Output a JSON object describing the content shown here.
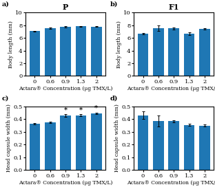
{
  "chart_data": [
    {
      "type": "bar",
      "title": "P",
      "categories": [
        "0",
        "0.6",
        "0.9",
        "1.3",
        "2"
      ],
      "values": [
        7.05,
        7.55,
        7.75,
        7.82,
        7.8
      ],
      "errors": [
        0.1,
        0.08,
        0.08,
        0.06,
        0.08
      ],
      "xlabel": "Actara® Concentration (μg TMX/L)",
      "ylabel": "Body length (mm)",
      "ylim": [
        0,
        10
      ],
      "yticks": [
        0,
        2,
        4,
        6,
        8,
        10
      ],
      "annotations": [
        {
          "text": "a)"
        }
      ]
    },
    {
      "type": "bar",
      "title": "F1",
      "categories": [
        "0",
        "0.6",
        "0.9",
        "1.3",
        "2"
      ],
      "values": [
        6.65,
        7.55,
        7.5,
        6.68,
        7.45
      ],
      "errors": [
        0.12,
        0.45,
        0.15,
        0.22,
        0.1
      ],
      "xlabel": "Actara® Concentration (μg TMX/L)",
      "ylabel": "Body length (mm)",
      "ylim": [
        0,
        10
      ],
      "yticks": [
        0,
        2,
        4,
        6,
        8,
        10
      ],
      "annotations": [
        {
          "text": "b)"
        }
      ]
    },
    {
      "type": "bar",
      "categories": [
        "0",
        "0.6",
        "0.9",
        "1.3",
        "2"
      ],
      "values": [
        0.365,
        0.375,
        0.43,
        0.432,
        0.447
      ],
      "errors": [
        0.006,
        0.006,
        0.01,
        0.006,
        0.006
      ],
      "xlabel": "Actara® Concentration (μg TMX/L)",
      "ylabel": "Head capsule width (mm)",
      "ylim": [
        0.0,
        0.5
      ],
      "yticks": [
        0.0,
        0.1,
        0.2,
        0.3,
        0.4,
        0.5
      ],
      "annotations": [
        {
          "text": "c)"
        },
        {
          "text": "*",
          "category": "0.9"
        },
        {
          "text": "*",
          "category": "1.3"
        },
        {
          "text": "*",
          "category": "2"
        }
      ]
    },
    {
      "type": "bar",
      "categories": [
        "0",
        "0.6",
        "0.9",
        "1.3",
        "2"
      ],
      "values": [
        0.43,
        0.385,
        0.385,
        0.355,
        0.35
      ],
      "errors": [
        0.03,
        0.042,
        0.008,
        0.007,
        0.007
      ],
      "xlabel": "Actara® Concentration (μg TMX/L)",
      "ylabel": "Head capsule width (mm)",
      "ylim": [
        0.0,
        0.5
      ],
      "yticks": [
        0.0,
        0.1,
        0.2,
        0.3,
        0.4,
        0.5
      ],
      "annotations": [
        {
          "text": "d)"
        }
      ]
    }
  ]
}
